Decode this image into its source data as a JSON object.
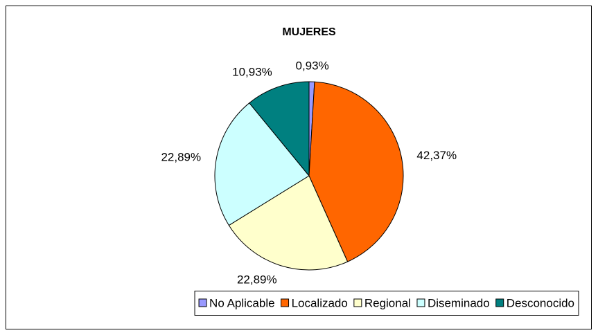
{
  "chart_data": {
    "type": "pie",
    "title": "MUJERES",
    "categories": [
      "No Aplicable",
      "Localizado",
      "Regional",
      "Diseminado",
      "Desconocido"
    ],
    "values": [
      0.93,
      42.37,
      22.89,
      22.89,
      10.93
    ],
    "value_labels": [
      "0,93%",
      "42,37%",
      "22,89%",
      "22,89%",
      "10,93%"
    ],
    "colors": [
      "#9999ff",
      "#ff6600",
      "#ffffcc",
      "#ccffff",
      "#008080"
    ],
    "legend": "bottom"
  }
}
